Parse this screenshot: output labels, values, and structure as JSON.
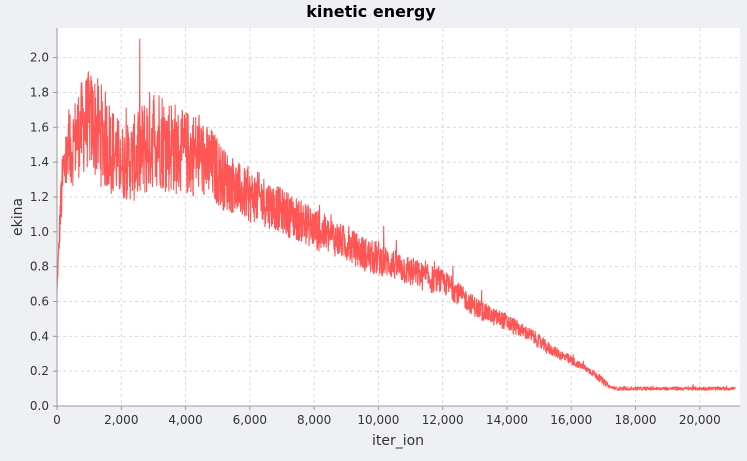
{
  "chart_data": {
    "type": "line",
    "title": "kinetic energy",
    "xlabel": "iter_ion",
    "ylabel": "ekina",
    "xlim": [
      0,
      21250
    ],
    "ylim": [
      0,
      2.17
    ],
    "x_ticks": [
      0,
      2000,
      4000,
      6000,
      8000,
      10000,
      12000,
      14000,
      16000,
      18000,
      20000
    ],
    "x_tick_labels": [
      "0",
      "2,000",
      "4,000",
      "6,000",
      "8,000",
      "10,000",
      "12,000",
      "14,000",
      "16,000",
      "18,000",
      "20,000"
    ],
    "y_ticks": [
      0,
      0.2,
      0.4,
      0.6,
      0.8,
      1.0,
      1.2,
      1.4,
      1.6,
      1.8,
      2.0
    ],
    "y_tick_labels": [
      "0.0",
      "0.2",
      "0.4",
      "0.6",
      "0.8",
      "1.0",
      "1.2",
      "1.4",
      "1.6",
      "1.8",
      "2.0"
    ],
    "grid": true,
    "legend": "none",
    "series": [
      {
        "color": "#ff5555",
        "x": [
          0,
          100,
          200,
          300,
          400,
          600,
          800,
          1000,
          1200,
          1400,
          1600,
          1800,
          2000,
          2200,
          2400,
          2600,
          2800,
          3000,
          3200,
          3400,
          3600,
          3800,
          4000,
          4200,
          4400,
          4600,
          4800,
          5000,
          5200,
          5400,
          5600,
          5800,
          6000,
          6200,
          6400,
          6600,
          6800,
          7000,
          7200,
          7400,
          7600,
          7800,
          8000,
          8200,
          8400,
          8600,
          8800,
          9000,
          9200,
          9400,
          9600,
          9800,
          10000,
          10200,
          10400,
          10600,
          10800,
          11000,
          11200,
          11400,
          11600,
          11800,
          12000,
          12200,
          12400,
          12600,
          12800,
          13000,
          13200,
          13400,
          13600,
          13800,
          14000,
          14200,
          14400,
          14600,
          14800,
          15000,
          15200,
          15400,
          15600,
          15800,
          16000,
          16200,
          16400,
          16600,
          16800,
          17000,
          17200,
          17400,
          17600,
          17800,
          18000,
          18400,
          18800,
          19200,
          19600,
          20000,
          20400,
          20800,
          21100
        ],
        "values": [
          0.65,
          1.1,
          1.35,
          1.4,
          1.45,
          1.55,
          1.6,
          1.65,
          1.6,
          1.55,
          1.5,
          1.45,
          1.4,
          1.4,
          1.42,
          1.45,
          1.5,
          1.55,
          1.55,
          1.5,
          1.5,
          1.45,
          1.45,
          1.45,
          1.45,
          1.4,
          1.38,
          1.35,
          1.3,
          1.28,
          1.25,
          1.22,
          1.2,
          1.2,
          1.18,
          1.16,
          1.14,
          1.12,
          1.1,
          1.08,
          1.06,
          1.04,
          1.02,
          1.0,
          0.98,
          0.97,
          0.95,
          0.93,
          0.91,
          0.89,
          0.87,
          0.85,
          0.85,
          0.83,
          0.82,
          0.8,
          0.79,
          0.77,
          0.76,
          0.74,
          0.73,
          0.72,
          0.71,
          0.69,
          0.66,
          0.63,
          0.6,
          0.57,
          0.55,
          0.53,
          0.51,
          0.5,
          0.48,
          0.46,
          0.44,
          0.42,
          0.4,
          0.37,
          0.34,
          0.32,
          0.3,
          0.28,
          0.26,
          0.24,
          0.22,
          0.2,
          0.17,
          0.14,
          0.11,
          0.1,
          0.1,
          0.1,
          0.1,
          0.1,
          0.1,
          0.1,
          0.1,
          0.1,
          0.1,
          0.1,
          0.1
        ],
        "noise": [
          0.0,
          0.15,
          0.2,
          0.2,
          0.22,
          0.25,
          0.28,
          0.28,
          0.3,
          0.3,
          0.28,
          0.25,
          0.22,
          0.22,
          0.25,
          0.28,
          0.3,
          0.3,
          0.3,
          0.28,
          0.28,
          0.25,
          0.25,
          0.25,
          0.24,
          0.22,
          0.22,
          0.2,
          0.18,
          0.17,
          0.16,
          0.15,
          0.15,
          0.15,
          0.15,
          0.14,
          0.13,
          0.13,
          0.13,
          0.13,
          0.12,
          0.12,
          0.12,
          0.12,
          0.11,
          0.11,
          0.1,
          0.1,
          0.1,
          0.1,
          0.1,
          0.1,
          0.1,
          0.09,
          0.09,
          0.09,
          0.09,
          0.09,
          0.08,
          0.08,
          0.08,
          0.08,
          0.07,
          0.07,
          0.07,
          0.06,
          0.06,
          0.06,
          0.06,
          0.05,
          0.05,
          0.05,
          0.05,
          0.05,
          0.04,
          0.04,
          0.04,
          0.04,
          0.04,
          0.03,
          0.03,
          0.03,
          0.03,
          0.02,
          0.02,
          0.02,
          0.02,
          0.02,
          0.01,
          0.01,
          0.01,
          0.01,
          0.01,
          0.01,
          0.01,
          0.01,
          0.01,
          0.01,
          0.01,
          0.01,
          0.01
        ]
      }
    ]
  }
}
